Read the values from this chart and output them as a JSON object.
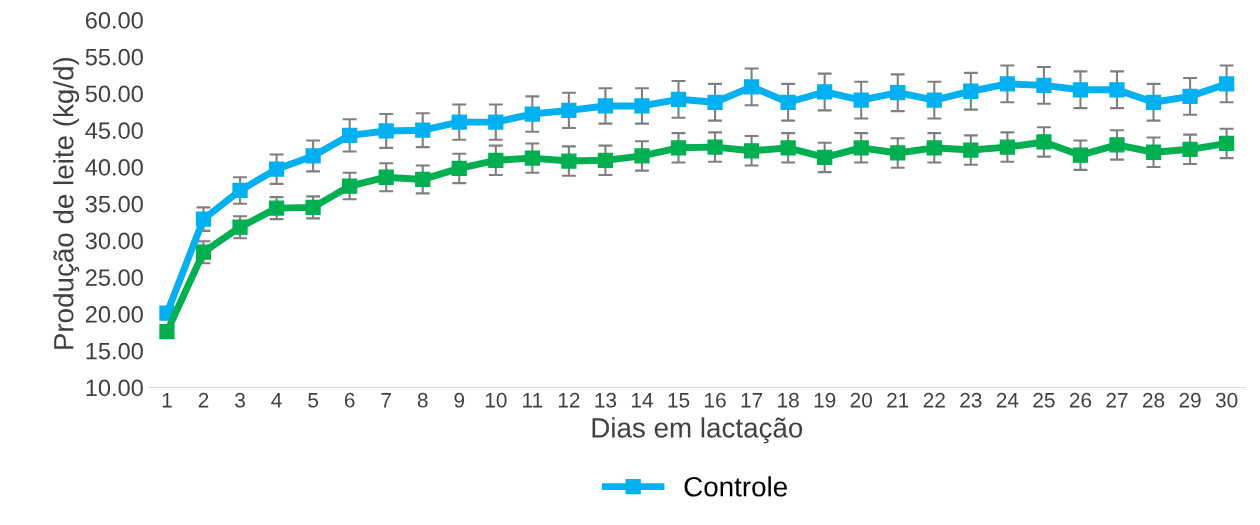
{
  "chart_data": {
    "type": "line",
    "xlabel": "Dias em lactação",
    "ylabel": "Produção de leite (kg/d)",
    "categories": [
      "1",
      "2",
      "3",
      "4",
      "5",
      "6",
      "7",
      "8",
      "9",
      "10",
      "11",
      "12",
      "13",
      "14",
      "15",
      "16",
      "17",
      "18",
      "19",
      "20",
      "21",
      "22",
      "23",
      "24",
      "25",
      "26",
      "27",
      "28",
      "29",
      "30"
    ],
    "ylim": [
      10,
      60
    ],
    "yticks": [
      {
        "value": 10,
        "label": "10.00"
      },
      {
        "value": 15,
        "label": "15.00"
      },
      {
        "value": 20,
        "label": "20.00"
      },
      {
        "value": 25,
        "label": "25.00"
      },
      {
        "value": 30,
        "label": "30.00"
      },
      {
        "value": 35,
        "label": "35.00"
      },
      {
        "value": 40,
        "label": "40.00"
      },
      {
        "value": 45,
        "label": "45.00"
      },
      {
        "value": 50,
        "label": "50.00"
      },
      {
        "value": 55,
        "label": "55.00"
      },
      {
        "value": 60,
        "label": "60.00"
      }
    ],
    "grid": false,
    "legend": "bottom",
    "marker": "square",
    "line_style": "solid",
    "series": [
      {
        "name": "Controle",
        "color": "#00b0f0",
        "values": [
          20.1,
          32.9,
          36.8,
          39.7,
          41.5,
          44.3,
          44.9,
          45.0,
          46.1,
          46.1,
          47.2,
          47.7,
          48.3,
          48.3,
          49.2,
          48.8,
          50.9,
          48.8,
          50.2,
          49.1,
          50.1,
          49.1,
          50.3,
          51.3,
          51.1,
          50.5,
          50.5,
          48.8,
          49.6,
          51.3
        ],
        "errors": [
          0.5,
          1.6,
          1.8,
          2.0,
          2.1,
          2.2,
          2.3,
          2.3,
          2.4,
          2.4,
          2.4,
          2.4,
          2.4,
          2.4,
          2.5,
          2.5,
          2.5,
          2.5,
          2.5,
          2.5,
          2.5,
          2.5,
          2.5,
          2.5,
          2.5,
          2.5,
          2.5,
          2.5,
          2.5,
          2.5
        ]
      },
      {
        "color": "#00b050",
        "values": [
          17.6,
          28.4,
          31.8,
          34.4,
          34.5,
          37.4,
          38.6,
          38.3,
          39.8,
          40.9,
          41.2,
          40.8,
          40.9,
          41.5,
          42.6,
          42.7,
          42.2,
          42.6,
          41.3,
          42.6,
          41.9,
          42.6,
          42.3,
          42.7,
          43.4,
          41.6,
          43.0,
          42.0,
          42.4,
          43.2
        ],
        "errors": [
          0.5,
          1.5,
          1.5,
          1.5,
          1.5,
          1.8,
          1.9,
          1.9,
          2.0,
          2.0,
          2.0,
          2.0,
          2.0,
          2.0,
          2.0,
          2.0,
          2.0,
          2.0,
          2.0,
          2.0,
          2.0,
          2.0,
          2.0,
          2.0,
          2.0,
          2.0,
          2.0,
          2.0,
          2.0,
          2.0
        ]
      }
    ]
  }
}
